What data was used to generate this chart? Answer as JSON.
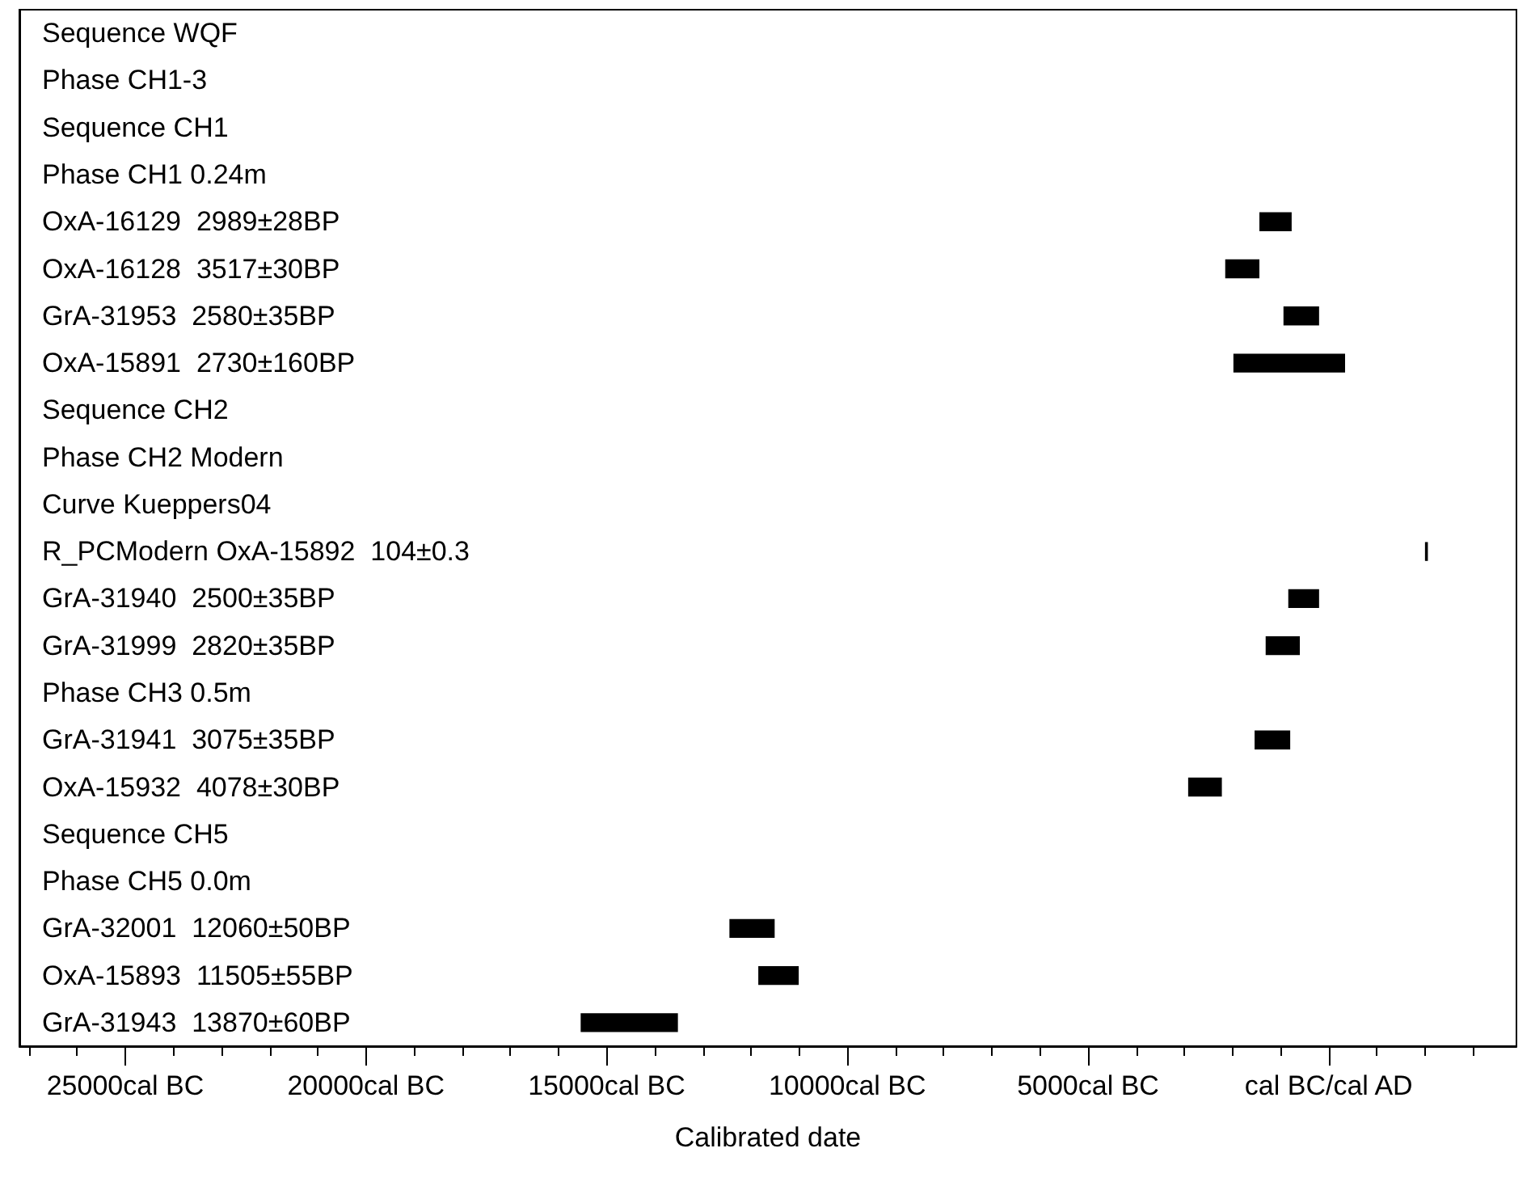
{
  "chart_data": {
    "type": "bar",
    "orientation": "horizontal",
    "xlabel": "Calibrated date",
    "categories": [
      "Sequence WQF",
      "Phase CH1-3",
      "Sequence CH1",
      "Phase CH1 0.24m",
      "OxA-16129  2989±28BP",
      "OxA-16128  3517±30BP",
      "GrA-31953  2580±35BP",
      "OxA-15891  2730±160BP",
      "Sequence CH2",
      "Phase CH2 Modern",
      "Curve Kueppers04",
      "R_PCModern OxA-15892  104±0.3",
      "GrA-31940  2500±35BP",
      "GrA-31999  2820±35BP",
      "Phase CH3 0.5m",
      "GrA-31941  3075±35BP",
      "OxA-15932  4078±30BP",
      "Sequence CH5",
      "Phase CH5 0.0m",
      "GrA-32001  12060±50BP",
      "OxA-15893  11505±55BP",
      "GrA-31943  13870±60BP"
    ],
    "base": [
      null,
      null,
      null,
      null,
      -1440,
      -2150,
      -940,
      -1980,
      null,
      null,
      null,
      2000,
      -840,
      -1310,
      null,
      -1540,
      -2920,
      null,
      null,
      -12450,
      -11850,
      -15540
    ],
    "values": [
      null,
      null,
      null,
      null,
      670,
      710,
      740,
      2320,
      null,
      null,
      null,
      60,
      640,
      710,
      null,
      740,
      700,
      null,
      null,
      940,
      840,
      2020
    ],
    "color": "#000000",
    "xlim": [
      -27200,
      3900
    ],
    "xticks": [
      {
        "value": -27000,
        "label": null
      },
      {
        "value": -26000,
        "label": null
      },
      {
        "value": -25000,
        "label": "25000cal BC"
      },
      {
        "value": -24000,
        "label": null
      },
      {
        "value": -23000,
        "label": null
      },
      {
        "value": -22000,
        "label": null
      },
      {
        "value": -21000,
        "label": null
      },
      {
        "value": -20000,
        "label": "20000cal BC"
      },
      {
        "value": -19000,
        "label": null
      },
      {
        "value": -18000,
        "label": null
      },
      {
        "value": -17000,
        "label": null
      },
      {
        "value": -16000,
        "label": null
      },
      {
        "value": -15000,
        "label": "15000cal BC"
      },
      {
        "value": -14000,
        "label": null
      },
      {
        "value": -13000,
        "label": null
      },
      {
        "value": -12000,
        "label": null
      },
      {
        "value": -11000,
        "label": null
      },
      {
        "value": -10000,
        "label": "10000cal BC"
      },
      {
        "value": -9000,
        "label": null
      },
      {
        "value": -8000,
        "label": null
      },
      {
        "value": -7000,
        "label": null
      },
      {
        "value": -6000,
        "label": null
      },
      {
        "value": -5000,
        "label": "5000cal BC"
      },
      {
        "value": -4000,
        "label": null
      },
      {
        "value": -3000,
        "label": null
      },
      {
        "value": -2000,
        "label": null
      },
      {
        "value": -1000,
        "label": null
      },
      {
        "value": 0,
        "label": "cal BC/cal AD"
      },
      {
        "value": 1000,
        "label": null
      },
      {
        "value": 2000,
        "label": null
      },
      {
        "value": 3000,
        "label": null
      }
    ],
    "grid": false
  }
}
